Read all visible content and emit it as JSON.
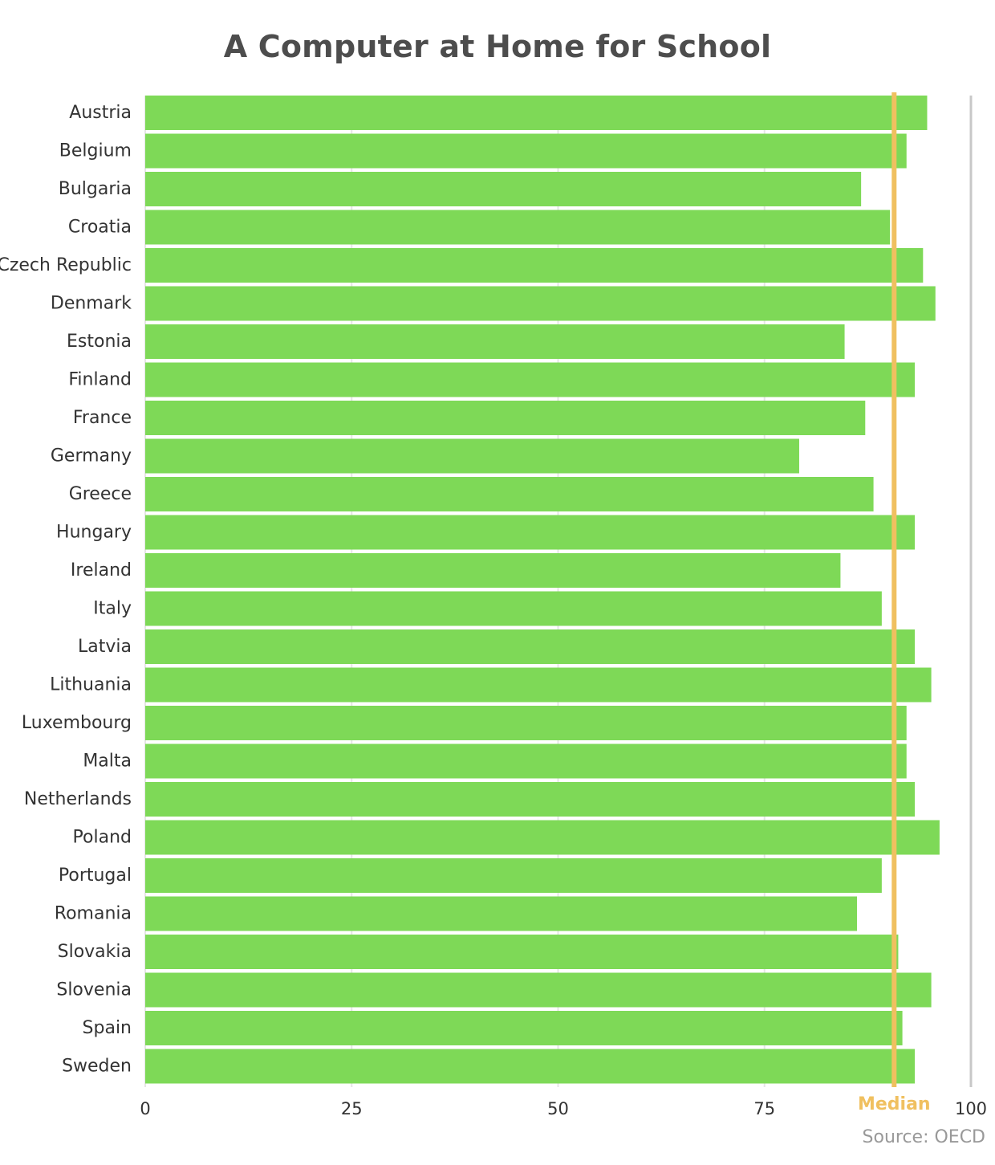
{
  "colors": {
    "bar": "#7ed957",
    "median": "#f0c060",
    "grid": "#e6e6e6",
    "axis": "#c8c8c8",
    "title": "#4d4d4d"
  },
  "source": "Source: OECD",
  "chart_data": {
    "type": "bar",
    "orientation": "horizontal",
    "title": "A Computer at Home for School",
    "xlabel": "",
    "ylabel": "",
    "xlim": [
      0,
      100
    ],
    "x_ticks": [
      0,
      25,
      50,
      75,
      100
    ],
    "grid": true,
    "categories": [
      "Austria",
      "Belgium",
      "Bulgaria",
      "Croatia",
      "Czech Republic",
      "Denmark",
      "Estonia",
      "Finland",
      "France",
      "Germany",
      "Greece",
      "Hungary",
      "Ireland",
      "Italy",
      "Latvia",
      "Lithuania",
      "Luxembourg",
      "Malta",
      "Netherlands",
      "Poland",
      "Portugal",
      "Romania",
      "Slovakia",
      "Slovenia",
      "Spain",
      "Sweden"
    ],
    "values": [
      94.7,
      92.2,
      86.7,
      90.2,
      94.2,
      95.7,
      84.7,
      93.2,
      87.2,
      79.2,
      88.2,
      93.2,
      84.2,
      89.2,
      93.2,
      95.2,
      92.2,
      92.2,
      93.2,
      96.2,
      89.2,
      86.2,
      91.2,
      95.2,
      91.7,
      93.2
    ],
    "reference_line": {
      "label": "Median",
      "value": 90.7
    }
  }
}
